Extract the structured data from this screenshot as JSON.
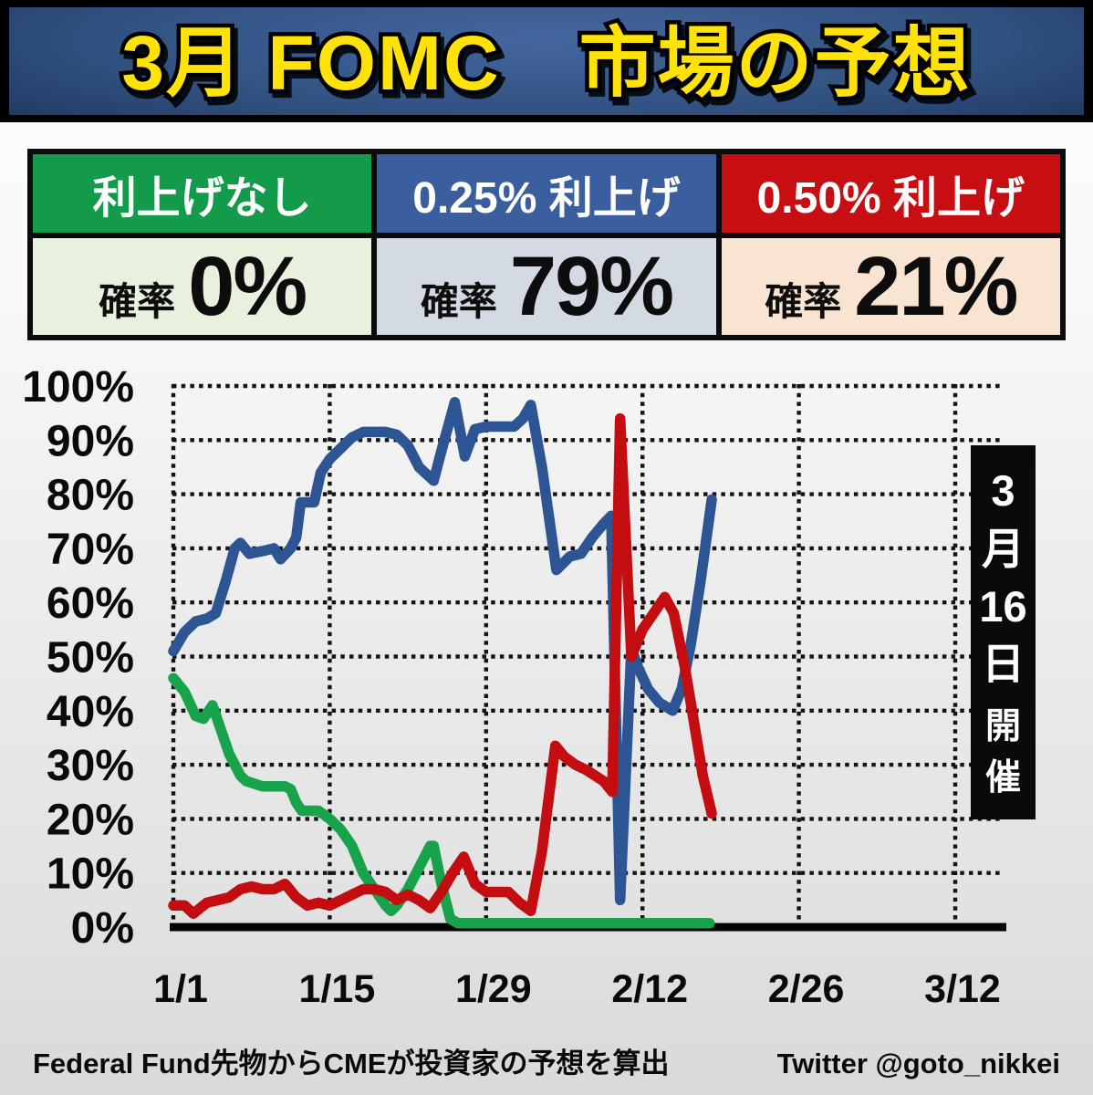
{
  "title": "3月 FOMC　市場の予想",
  "table": {
    "columns": [
      {
        "id": "no-hike",
        "label": "利上げなし",
        "prob_word": "確率",
        "value": "0%"
      },
      {
        "id": "hike-25bp",
        "label": "0.25% 利上げ",
        "prob_word": "確率",
        "value": "79%"
      },
      {
        "id": "hike-50bp",
        "label": "0.50% 利上げ",
        "prob_word": "確率",
        "value": "21%"
      }
    ],
    "header_colors": {
      "no_hike": "#149a4b",
      "hike_25bp": "#3a5e9e",
      "hike_50bp": "#c60e13"
    },
    "value_colors": {
      "no_hike": "#e8f1dd",
      "hike_25bp": "#d4dae4",
      "hike_50bp": "#f8e4d0"
    }
  },
  "event_box": {
    "chars": [
      "3",
      "月",
      "16",
      "日"
    ],
    "label_chars": [
      "開",
      "催"
    ],
    "text": "3月16日 開催"
  },
  "footer": {
    "source": "Federal Fund先物からCMEが投資家の予想を算出",
    "credit": "Twitter @goto_nikkei"
  },
  "accent_colors": {
    "title_yellow": "#ffe20a",
    "banner_navy": "#2c4a80",
    "grid_black": "#141414"
  },
  "chart_data": {
    "type": "line",
    "title": "3月 FOMC 市場の予想",
    "xlabel": "",
    "ylabel": "",
    "grid": true,
    "legend_position": "none",
    "x_axis": {
      "unit": "days since 1/1",
      "tick_days": [
        0,
        14,
        28,
        42,
        56,
        70
      ],
      "tick_labels": [
        "1/1",
        "1/15",
        "1/29",
        "2/12",
        "2/26",
        "3/12"
      ]
    },
    "y_axis": {
      "min": 0,
      "max": 100,
      "tick_step": 10,
      "tick_labels": [
        "100%",
        "90%",
        "80%",
        "70%",
        "60%",
        "50%",
        "40%",
        "30%",
        "20%",
        "10%",
        "0%"
      ]
    },
    "series": [
      {
        "id": "no-hike",
        "name": "利上げなし",
        "color": "#18a24c",
        "points": [
          [
            0,
            46
          ],
          [
            1,
            43.5
          ],
          [
            2,
            39
          ],
          [
            2.7,
            38.5
          ],
          [
            3.5,
            41
          ],
          [
            5,
            32
          ],
          [
            6,
            28
          ],
          [
            6.5,
            27
          ],
          [
            8,
            26
          ],
          [
            10,
            26
          ],
          [
            10.5,
            25.5
          ],
          [
            11,
            23
          ],
          [
            11.5,
            21.5
          ],
          [
            13,
            21.5
          ],
          [
            14,
            20
          ],
          [
            15,
            18
          ],
          [
            16,
            15
          ],
          [
            17,
            10
          ],
          [
            18,
            7
          ],
          [
            18.5,
            5.5
          ],
          [
            19,
            4
          ],
          [
            19.5,
            3
          ],
          [
            20,
            4
          ],
          [
            21,
            7
          ],
          [
            22,
            11
          ],
          [
            23,
            15
          ],
          [
            23.3,
            15
          ],
          [
            24,
            8
          ],
          [
            24.8,
            1.5
          ],
          [
            25.5,
            0.7
          ],
          [
            48,
            0.7
          ]
        ]
      },
      {
        "id": "hike-25bp",
        "name": "0.25% 利上げ",
        "color": "#2d5493",
        "points": [
          [
            0,
            51
          ],
          [
            1,
            54.5
          ],
          [
            2,
            56.5
          ],
          [
            3,
            57
          ],
          [
            3.8,
            58
          ],
          [
            4.7,
            64
          ],
          [
            5.5,
            70
          ],
          [
            6,
            71
          ],
          [
            6.8,
            69
          ],
          [
            8,
            69.5
          ],
          [
            9,
            70
          ],
          [
            9.6,
            68
          ],
          [
            10.5,
            70
          ],
          [
            11,
            72
          ],
          [
            11.4,
            78.5
          ],
          [
            12.6,
            78.5
          ],
          [
            13.2,
            84
          ],
          [
            14,
            86.5
          ],
          [
            15,
            88.5
          ],
          [
            16,
            90.5
          ],
          [
            17,
            91.5
          ],
          [
            19,
            91.5
          ],
          [
            20,
            91
          ],
          [
            21,
            89
          ],
          [
            22,
            85
          ],
          [
            23.3,
            82.5
          ],
          [
            24,
            88
          ],
          [
            25.2,
            97
          ],
          [
            26.1,
            87
          ],
          [
            27,
            92
          ],
          [
            28,
            92.5
          ],
          [
            30.5,
            92.5
          ],
          [
            31.3,
            94
          ],
          [
            32,
            96.5
          ],
          [
            33,
            85
          ],
          [
            34.3,
            66
          ],
          [
            35.5,
            68.5
          ],
          [
            36.5,
            69
          ],
          [
            37.5,
            72
          ],
          [
            38.5,
            74.5
          ],
          [
            39.2,
            76
          ],
          [
            40,
            5
          ],
          [
            41,
            51.5
          ],
          [
            41.6,
            48
          ],
          [
            42.5,
            44
          ],
          [
            43.5,
            41.5
          ],
          [
            44.7,
            40
          ],
          [
            45.5,
            44
          ],
          [
            46.3,
            52
          ],
          [
            47.2,
            64
          ],
          [
            48.2,
            79
          ]
        ]
      },
      {
        "id": "hike-50bp",
        "name": "0.50% 利上げ",
        "color": "#c30d10",
        "points": [
          [
            0,
            4
          ],
          [
            1,
            4
          ],
          [
            1.8,
            2.5
          ],
          [
            3,
            4.5
          ],
          [
            4,
            5
          ],
          [
            5,
            5.5
          ],
          [
            6,
            7
          ],
          [
            7,
            7.5
          ],
          [
            8,
            7
          ],
          [
            9,
            7
          ],
          [
            10,
            8
          ],
          [
            11,
            5.5
          ],
          [
            12,
            4
          ],
          [
            13,
            4.5
          ],
          [
            14,
            4
          ],
          [
            15,
            5
          ],
          [
            16,
            6
          ],
          [
            17,
            7
          ],
          [
            18,
            7
          ],
          [
            19,
            6.5
          ],
          [
            20,
            5
          ],
          [
            21,
            6
          ],
          [
            22,
            5
          ],
          [
            23,
            3.5
          ],
          [
            24,
            6.5
          ],
          [
            25,
            10
          ],
          [
            26,
            13
          ],
          [
            27,
            8
          ],
          [
            28,
            6.5
          ],
          [
            30,
            6.5
          ],
          [
            31,
            4.5
          ],
          [
            32,
            3
          ],
          [
            33,
            14
          ],
          [
            34.2,
            33.5
          ],
          [
            35,
            31.5
          ],
          [
            36,
            30
          ],
          [
            37,
            29
          ],
          [
            38.5,
            27
          ],
          [
            39.3,
            25
          ],
          [
            40,
            94
          ],
          [
            41,
            50
          ],
          [
            42,
            55
          ],
          [
            43,
            58
          ],
          [
            44,
            61
          ],
          [
            44.8,
            58
          ],
          [
            45.8,
            48
          ],
          [
            46.6,
            38
          ],
          [
            47.4,
            28
          ],
          [
            48.2,
            21
          ]
        ]
      }
    ],
    "annotations": [
      {
        "text": "3月16日 開催",
        "position": "right-side-black-box"
      }
    ]
  }
}
